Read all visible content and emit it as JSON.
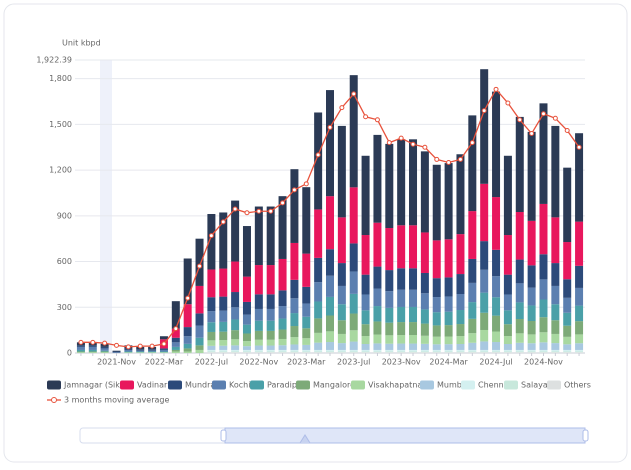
{
  "chart_data": {
    "type": "bar",
    "unit_label": "Unit  kbpd",
    "categories": [
      null,
      null,
      null,
      "2021-Nov",
      null,
      null,
      null,
      "2022-Mar",
      null,
      null,
      null,
      "2022-Jul",
      null,
      null,
      null,
      "2022-Nov",
      null,
      null,
      null,
      "2023-Mar",
      null,
      null,
      null,
      "2023-Jul",
      null,
      null,
      null,
      "2023-Nov",
      null,
      null,
      null,
      "2024-Mar",
      null,
      null,
      null,
      "2024-Jul",
      null,
      null,
      null,
      "2024-Nov",
      null,
      null,
      null
    ],
    "ylim": [
      0,
      1922.39
    ],
    "yticks": [
      0,
      300,
      600,
      900,
      {
        "value": 1200,
        "label": "1,200"
      },
      {
        "value": 1500,
        "label": "1,500"
      },
      {
        "value": 1800,
        "label": "1,800"
      },
      {
        "value": 1922.39,
        "label": "1,922.39"
      }
    ],
    "grid": true,
    "legend": "bottom",
    "series": [
      {
        "name": "Jamnagar (Sikka)",
        "color": "#2b3a55",
        "values": [
          20,
          20,
          20,
          5,
          20,
          15,
          15,
          20,
          180,
          300,
          310,
          364,
          368,
          400,
          332,
          384,
          384,
          412,
          484,
          436,
          636,
          696,
          600,
          736,
          520,
          576,
          552,
          564,
          564,
          532,
          496,
          500,
          524,
          628,
          752,
          692,
          520,
          624,
          584,
          660,
          600,
          488,
          580
        ]
      },
      {
        "name": "Vadinar",
        "color": "#e8175d",
        "values": [
          0,
          0,
          0,
          0,
          0,
          0,
          0,
          60,
          60,
          150,
          180,
          182,
          184,
          200,
          166,
          192,
          192,
          206,
          242,
          218,
          318,
          348,
          300,
          368,
          260,
          288,
          276,
          282,
          282,
          266,
          248,
          250,
          262,
          314,
          376,
          346,
          260,
          312,
          292,
          330,
          300,
          244,
          290
        ]
      },
      {
        "name": "Mundra",
        "color": "#2c4a7a",
        "values": [
          10,
          10,
          10,
          5,
          10,
          10,
          10,
          10,
          30,
          60,
          80,
          91,
          92,
          100,
          83,
          96,
          96,
          103,
          121,
          109,
          159,
          174,
          150,
          184,
          130,
          144,
          138,
          141,
          141,
          133,
          124,
          125,
          131,
          157,
          188,
          173,
          130,
          156,
          146,
          165,
          150,
          122,
          145
        ]
      },
      {
        "name": "Kochi",
        "color": "#5b7fb0",
        "values": [
          20,
          20,
          15,
          5,
          10,
          5,
          5,
          10,
          30,
          50,
          80,
          73,
          74,
          80,
          66,
          77,
          77,
          82,
          97,
          87,
          127,
          139,
          120,
          147,
          104,
          115,
          110,
          113,
          113,
          106,
          99,
          100,
          105,
          126,
          150,
          138,
          104,
          125,
          117,
          132,
          120,
          98,
          116
        ]
      },
      {
        "name": "Paradip",
        "color": "#4aa0a8",
        "values": [
          10,
          10,
          5,
          0,
          5,
          5,
          5,
          5,
          20,
          30,
          50,
          64,
          64,
          70,
          58,
          67,
          67,
          72,
          85,
          76,
          111,
          122,
          105,
          129,
          91,
          101,
          97,
          99,
          99,
          93,
          87,
          88,
          92,
          110,
          132,
          121,
          91,
          109,
          102,
          116,
          105,
          85,
          102
        ]
      },
      {
        "name": "Mangalore",
        "color": "#7daa78",
        "values": [
          5,
          5,
          5,
          0,
          0,
          0,
          0,
          0,
          10,
          20,
          30,
          55,
          55,
          60,
          50,
          58,
          58,
          62,
          73,
          65,
          95,
          104,
          90,
          110,
          78,
          86,
          83,
          85,
          85,
          80,
          74,
          75,
          79,
          94,
          113,
          104,
          78,
          94,
          88,
          99,
          90,
          73,
          87
        ]
      },
      {
        "name": "Visakhapatnam",
        "color": "#a8d8a0",
        "values": [
          5,
          5,
          5,
          0,
          5,
          5,
          5,
          5,
          10,
          10,
          20,
          36,
          37,
          40,
          33,
          38,
          38,
          41,
          48,
          44,
          64,
          70,
          60,
          74,
          52,
          58,
          55,
          56,
          56,
          53,
          50,
          50,
          52,
          63,
          75,
          69,
          52,
          62,
          58,
          66,
          60,
          49,
          58
        ]
      },
      {
        "name": "Mumbai",
        "color": "#a8c8e0",
        "values": [
          0,
          0,
          0,
          0,
          0,
          0,
          0,
          0,
          0,
          0,
          0,
          27,
          28,
          30,
          25,
          29,
          29,
          31,
          36,
          33,
          48,
          52,
          45,
          55,
          39,
          43,
          41,
          42,
          42,
          40,
          37,
          38,
          39,
          47,
          56,
          52,
          39,
          47,
          44,
          50,
          45,
          37,
          44
        ]
      },
      {
        "name": "Chennai",
        "color": "#d4f0f0",
        "values": [
          0,
          0,
          0,
          0,
          0,
          0,
          0,
          0,
          0,
          0,
          0,
          10,
          10,
          10,
          10,
          10,
          10,
          10,
          10,
          10,
          10,
          10,
          10,
          10,
          10,
          10,
          10,
          10,
          10,
          10,
          10,
          10,
          10,
          10,
          10,
          10,
          10,
          10,
          10,
          10,
          10,
          10,
          10
        ]
      },
      {
        "name": "Salaya",
        "color": "#c8e8dc",
        "values": [
          0,
          0,
          0,
          0,
          0,
          0,
          0,
          0,
          0,
          0,
          0,
          5,
          5,
          5,
          5,
          5,
          5,
          5,
          5,
          5,
          5,
          5,
          5,
          5,
          5,
          5,
          5,
          5,
          5,
          5,
          5,
          5,
          5,
          5,
          5,
          5,
          5,
          5,
          5,
          5,
          5,
          5,
          5
        ]
      },
      {
        "name": "Others",
        "color": "#dde0e0",
        "values": [
          0,
          0,
          0,
          0,
          0,
          0,
          0,
          0,
          0,
          0,
          0,
          5,
          5,
          5,
          5,
          5,
          5,
          5,
          5,
          5,
          5,
          5,
          5,
          5,
          5,
          5,
          5,
          5,
          5,
          5,
          5,
          5,
          5,
          5,
          5,
          5,
          5,
          5,
          5,
          5,
          5,
          5,
          5
        ]
      },
      {
        "name": "3 months moving average",
        "type": "line",
        "color": "#e8533d",
        "values": [
          70,
          70,
          65,
          50,
          40,
          45,
          45,
          60,
          160,
          360,
          570,
          770,
          860,
          945,
          920,
          930,
          930,
          985,
          1070,
          1110,
          1300,
          1480,
          1610,
          1700,
          1550,
          1530,
          1380,
          1410,
          1370,
          1350,
          1270,
          1250,
          1270,
          1380,
          1590,
          1730,
          1640,
          1530,
          1440,
          1570,
          1540,
          1460,
          1350
        ]
      }
    ]
  }
}
